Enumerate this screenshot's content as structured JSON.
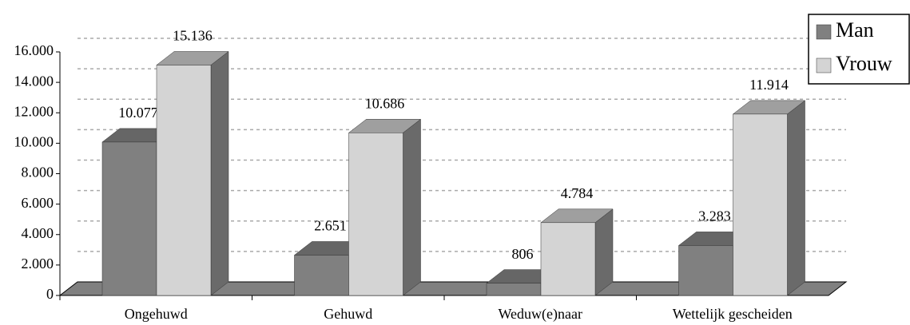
{
  "chart_data": {
    "type": "bar3d",
    "categories": [
      "Ongehuwd",
      "Gehuwd",
      "Weduw(e)naar",
      "Wettelijk gescheiden"
    ],
    "series": [
      {
        "name": "Man",
        "color": "#808080",
        "values": [
          10077,
          2651,
          806,
          3283
        ],
        "value_labels": [
          "10.077",
          "2.651",
          "806",
          "3.283"
        ]
      },
      {
        "name": "Vrouw",
        "color": "#d4d4d4",
        "values": [
          15136,
          10686,
          4784,
          11914
        ],
        "value_labels": [
          "15.136",
          "10.686",
          "4.784",
          "11.914"
        ]
      }
    ],
    "ylim": [
      0,
      16000
    ],
    "yticks": [
      0,
      {
        "value": 2000,
        "label": "2.000"
      },
      {
        "value": 4000,
        "label": "4.000"
      },
      {
        "value": 6000,
        "label": "6.000"
      },
      {
        "value": 8000,
        "label": "8.000"
      },
      {
        "value": 10000,
        "label": "10.000"
      },
      {
        "value": 12000,
        "label": "12.000"
      },
      {
        "value": 14000,
        "label": "14.000"
      },
      {
        "value": 16000,
        "label": "16.000"
      }
    ],
    "grid": true,
    "legend": "top-right"
  }
}
